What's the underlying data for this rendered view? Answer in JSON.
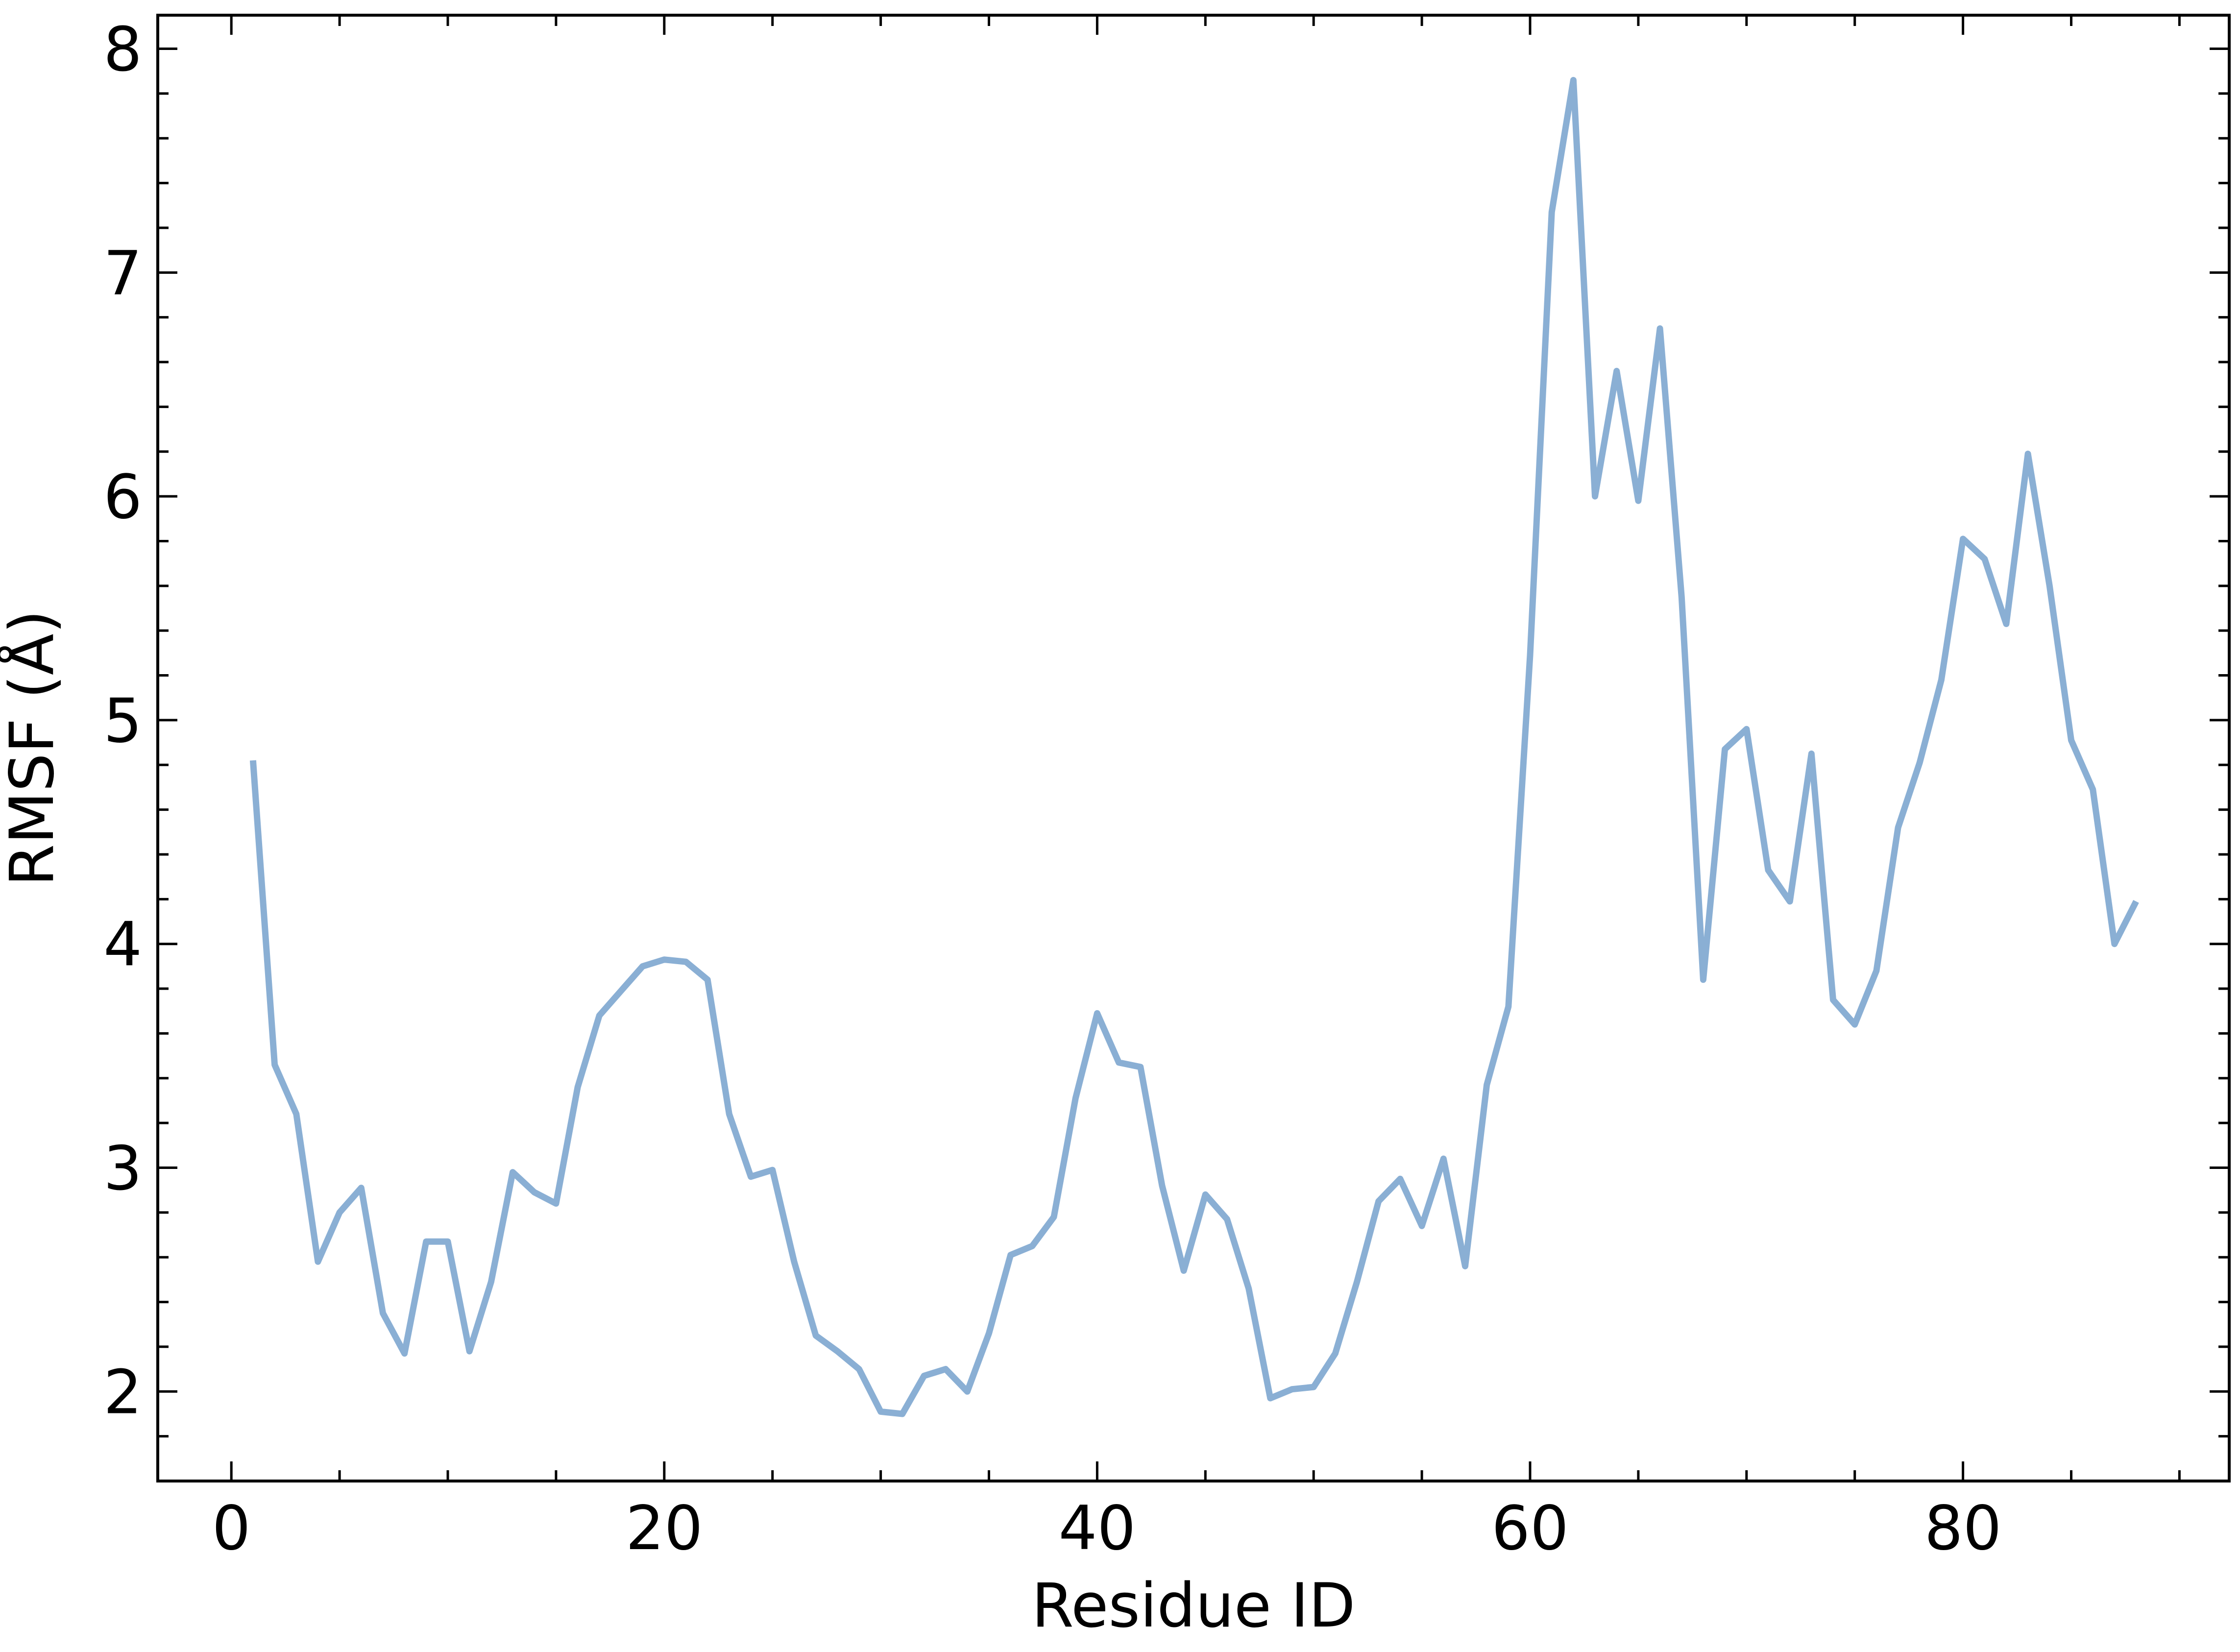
{
  "chart_data": {
    "type": "line",
    "title": "",
    "xlabel": "Residue ID",
    "ylabel": "RMSF (Å)",
    "xlim": [
      -3.4,
      92.3
    ],
    "ylim": [
      1.6,
      8.15
    ],
    "xticks": [
      0,
      20,
      40,
      60,
      80
    ],
    "xtick_labels": [
      "0",
      "20",
      "40",
      "60",
      "80"
    ],
    "yticks": [
      2,
      3,
      4,
      5,
      6,
      7,
      8
    ],
    "ytick_labels": [
      "2",
      "3",
      "4",
      "5",
      "6",
      "7",
      "8"
    ],
    "x_minor_step": 5,
    "y_minor_step": 0.2,
    "grid": false,
    "series": [
      {
        "color": "#8aafd4",
        "x": [
          1,
          2,
          3,
          4,
          5,
          6,
          7,
          8,
          9,
          10,
          11,
          12,
          13,
          14,
          15,
          16,
          17,
          18,
          19,
          20,
          21,
          22,
          23,
          24,
          25,
          26,
          27,
          28,
          29,
          30,
          31,
          32,
          33,
          34,
          35,
          36,
          37,
          38,
          39,
          40,
          41,
          42,
          43,
          44,
          45,
          46,
          47,
          48,
          49,
          50,
          51,
          52,
          53,
          54,
          55,
          56,
          57,
          58,
          59,
          60,
          61,
          62,
          63,
          64,
          65,
          66,
          67,
          68,
          69,
          70,
          71,
          72,
          73,
          74,
          75,
          76,
          77,
          78,
          79,
          80,
          81,
          82,
          83,
          84,
          85,
          86,
          87,
          88
        ],
        "values": [
          4.82,
          3.46,
          3.24,
          2.58,
          2.8,
          2.91,
          2.35,
          2.17,
          2.67,
          2.67,
          2.18,
          2.49,
          2.98,
          2.89,
          2.84,
          3.36,
          3.68,
          3.79,
          3.9,
          3.93,
          3.92,
          3.84,
          3.24,
          2.96,
          2.99,
          2.58,
          2.25,
          2.18,
          2.1,
          1.91,
          1.9,
          2.07,
          2.1,
          2.0,
          2.26,
          2.61,
          2.65,
          2.78,
          3.31,
          3.69,
          3.47,
          3.45,
          2.92,
          2.54,
          2.88,
          2.77,
          2.46,
          1.97,
          2.01,
          2.02,
          2.17,
          2.49,
          2.85,
          2.95,
          2.74,
          3.04,
          2.56,
          3.37,
          3.72,
          5.29,
          7.27,
          7.86,
          6.0,
          6.56,
          5.98,
          6.75,
          5.55,
          3.84,
          4.87,
          4.96,
          4.33,
          4.19,
          4.85,
          3.75,
          3.64,
          3.88,
          4.52,
          4.81,
          5.18,
          5.81,
          5.72,
          5.43,
          6.19,
          5.6,
          4.91,
          4.69,
          4.0,
          4.19
        ]
      }
    ]
  }
}
